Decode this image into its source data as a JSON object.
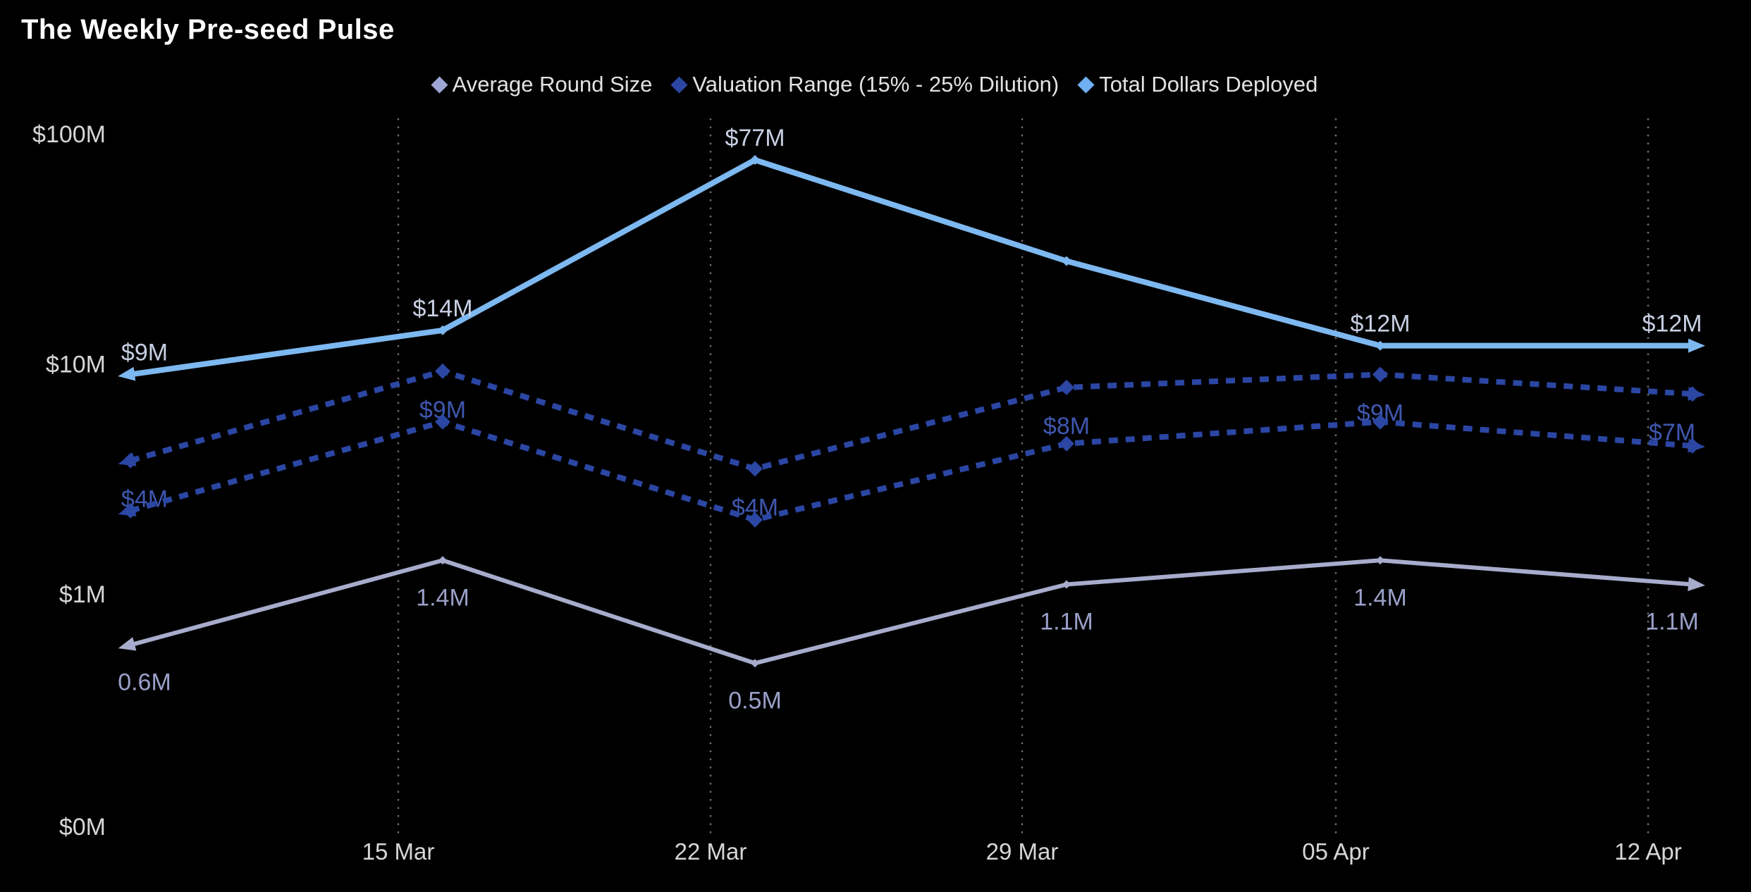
{
  "title": "The Weekly Pre-seed Pulse",
  "legend": [
    {
      "label": "Average Round Size",
      "color": "#9ea6d6"
    },
    {
      "label": "Valuation Range (15% - 25% Dilution)",
      "color": "#2b46a3"
    },
    {
      "label": "Total Dollars Deployed",
      "color": "#6fb0f2"
    }
  ],
  "y_axis": {
    "tick_labels": [
      "$100M",
      "$10M",
      "$1M",
      "$0M"
    ],
    "tick_values": [
      100,
      10,
      1,
      0
    ],
    "color": "#d6d6d6"
  },
  "x_axis": {
    "tick_labels": [
      "15 Mar",
      "22 Mar",
      "29 Mar",
      "05 Apr",
      "12 Apr"
    ],
    "color": "#d6d6d6"
  },
  "chart_data": {
    "type": "line",
    "y_scale": "log",
    "ylim": [
      0,
      100
    ],
    "grid": "vertical-dotted",
    "legend_position": "top-center",
    "categories": [
      "",
      "15 Mar",
      "22 Mar",
      "29 Mar",
      "05 Apr",
      "12 Apr"
    ],
    "series": [
      {
        "name": "Valuation Range Upper (15% Dilution)",
        "legend_group": "Valuation Range (15% - 25% Dilution)",
        "style": "dotted",
        "color": "#2b46a3",
        "label_color": "#3f57b0",
        "values": [
          3.8,
          9.3,
          3.5,
          7.9,
          9.0,
          7.4
        ],
        "labels": [
          "$4M",
          "$9M",
          "$4M",
          "$8M",
          "$9M",
          "$7M"
        ],
        "label_position": "below"
      },
      {
        "name": "Valuation Range Lower (25% Dilution)",
        "legend_group": "Valuation Range (15% - 25% Dilution)",
        "style": "dotted",
        "color": "#2b46a3",
        "label_color": "#3f57b0",
        "values": [
          2.3,
          5.6,
          2.1,
          4.5,
          5.6,
          4.4
        ],
        "labels": [
          "",
          "",
          "",
          "",
          "",
          ""
        ],
        "label_position": "below"
      },
      {
        "name": "Average Round Size",
        "style": "solid",
        "color": "#a8accc",
        "label_color": "#9aa0c8",
        "values": [
          0.6,
          1.4,
          0.5,
          1.1,
          1.4,
          1.1
        ],
        "labels": [
          "0.6M",
          "1.4M",
          "0.5M",
          "1.1M",
          "1.4M",
          "1.1M"
        ],
        "label_position": "below"
      },
      {
        "name": "Total Dollars Deployed",
        "style": "solid",
        "color": "#7db8f0",
        "label_color": "#c7cfe2",
        "values": [
          9,
          14,
          77,
          28,
          12,
          12
        ],
        "labels": [
          "$9M",
          "$14M",
          "$77M",
          "",
          "$12M",
          "$12M"
        ],
        "label_position": "above"
      }
    ]
  }
}
